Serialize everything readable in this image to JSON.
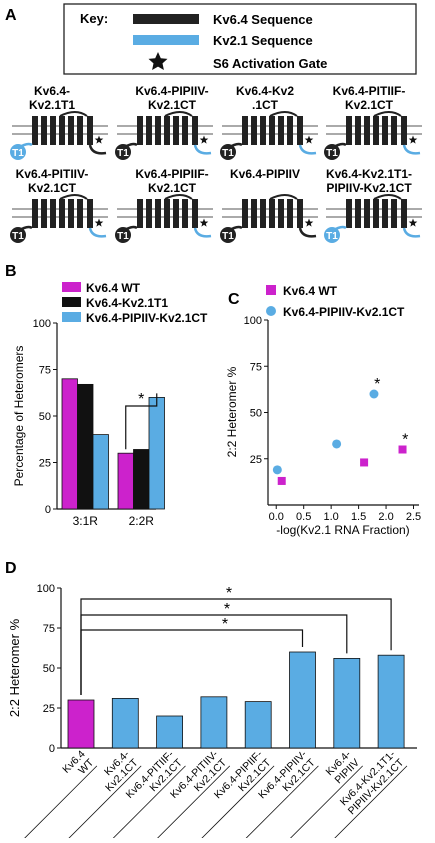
{
  "panels": {
    "a": "A",
    "b": "B",
    "c": "C",
    "d": "D"
  },
  "key": {
    "title": "Key:",
    "kv64": "Kv6.4 Sequence",
    "kv21": "Kv2.1 Sequence",
    "gate": "S6 Activation Gate"
  },
  "colors": {
    "kv64": "#222222",
    "kv21": "#5aace3",
    "wt": "#cc22cc"
  },
  "constructs": [
    {
      "line1": "Kv6.4-",
      "line2": "Kv2.1T1",
      "t1": "kv21",
      "mid": "kv64",
      "ct": "kv64"
    },
    {
      "line1": "Kv6.4-PIPIIV-",
      "line2": "Kv2.1CT",
      "t1": "kv64",
      "mid": "kv64",
      "ct": "kv21"
    },
    {
      "line1": "Kv6.4-Kv2",
      "line2": ".1CT",
      "t1": "kv64",
      "mid": "kv64",
      "ct": "kv21"
    },
    {
      "line1": "Kv6.4-PITIIF-",
      "line2": "Kv2.1CT",
      "t1": "kv64",
      "mid": "kv64",
      "ct": "kv21"
    },
    {
      "line1": "Kv6.4-PITIIV-",
      "line2": "Kv2.1CT",
      "t1": "kv64",
      "mid": "kv64",
      "ct": "kv21"
    },
    {
      "line1": "Kv6.4-PIPIIF-",
      "line2": "Kv2.1CT",
      "t1": "kv64",
      "mid": "kv64",
      "ct": "kv21"
    },
    {
      "line1": "Kv6.4-PIPIIV",
      "line2": "",
      "t1": "kv64",
      "mid": "kv64",
      "ct": "kv64"
    },
    {
      "line1": "Kv6.4-Kv2.1T1-",
      "line2": "PIPIIV-Kv2.1CT",
      "t1": "kv21",
      "mid": "kv64",
      "ct": "kv21"
    }
  ],
  "t1_label": "T1",
  "star": "*",
  "chart_data": [
    {
      "panel": "B",
      "type": "bar",
      "ylabel": "Percentage of Heteromers",
      "ylim": [
        0,
        100
      ],
      "yticks": [
        0,
        25,
        50,
        75,
        100
      ],
      "categories": [
        "3:1R",
        "2:2R"
      ],
      "series": [
        {
          "name": "Kv6.4 WT",
          "color": "#cc22cc",
          "values": [
            70,
            30
          ]
        },
        {
          "name": "Kv6.4-Kv2.1T1",
          "color": "#111111",
          "values": [
            67,
            32
          ]
        },
        {
          "name": "Kv6.4-PIPIIV-Kv2.1CT",
          "color": "#5aace3",
          "values": [
            40,
            60
          ]
        }
      ],
      "annotation": "*"
    },
    {
      "panel": "C",
      "type": "scatter",
      "xlabel": "-log(Kv2.1 RNA Fraction)",
      "ylabel": "2:2 Heteromer %",
      "xlim": [
        -0.15,
        2.6
      ],
      "ylim": [
        0,
        100
      ],
      "xticks": [
        0.0,
        0.5,
        1.0,
        1.5,
        2.0,
        2.5
      ],
      "xticklabels": [
        "0.0",
        "0.5",
        "1.0",
        "1.5",
        "2.0",
        "2.5"
      ],
      "yticks": [
        25,
        50,
        75,
        100
      ],
      "series": [
        {
          "name": "Kv6.4 WT",
          "color": "#cc22cc",
          "marker": "square",
          "x": [
            0.1,
            1.6,
            2.3
          ],
          "y": [
            13,
            23,
            30
          ]
        },
        {
          "name": "Kv6.4-PIPIIV-Kv2.1CT",
          "color": "#5aace3",
          "marker": "circle",
          "x": [
            0.02,
            1.1,
            1.78
          ],
          "y": [
            19,
            33,
            60
          ]
        }
      ],
      "annotations": [
        {
          "x": 1.84,
          "y": 66,
          "text": "*"
        },
        {
          "x": 2.35,
          "y": 36,
          "text": "*"
        }
      ]
    },
    {
      "panel": "D",
      "type": "bar",
      "ylabel": "2:2 Heteromer %",
      "ylim": [
        0,
        100
      ],
      "yticks": [
        0,
        25,
        50,
        75,
        100
      ],
      "categories": [
        "Kv6.4 WT",
        "Kv6.4-Kv2.1CT",
        "Kv6.4-PITIIF-Kv2.1CT",
        "Kv6.4-PITIIV-Kv2.1CT",
        "Kv6.4-PIPIIF-Kv2.1CT",
        "Kv6.4-PIPIIV-Kv2.1CT",
        "Kv6.4-PIPIIV",
        "Kv6.4-Kv2.1T1-PIPIIV-Kv2.1CT"
      ],
      "category_lines": [
        [
          "Kv6.4",
          "WT"
        ],
        [
          "Kv6.4-",
          "Kv2.1CT"
        ],
        [
          "Kv6.4-PITIIF-",
          "Kv2.1CT"
        ],
        [
          "Kv6.4-PITIIV-",
          "Kv2.1CT"
        ],
        [
          "Kv6.4-PIPIIF-",
          "Kv2.1CT"
        ],
        [
          "Kv6.4-PIPIIV-",
          "Kv2.1CT"
        ],
        [
          "Kv6.4-",
          "PIPIIV"
        ],
        [
          "Kv6.4-Kv2.1T1-",
          "PIPIIV-Kv2.1CT"
        ]
      ],
      "values": [
        30,
        31,
        20,
        32,
        29,
        60,
        56,
        58
      ],
      "colors": [
        "#cc22cc",
        "#5aace3",
        "#5aace3",
        "#5aace3",
        "#5aace3",
        "#5aace3",
        "#5aace3",
        "#5aace3"
      ],
      "annotation": "*"
    }
  ]
}
